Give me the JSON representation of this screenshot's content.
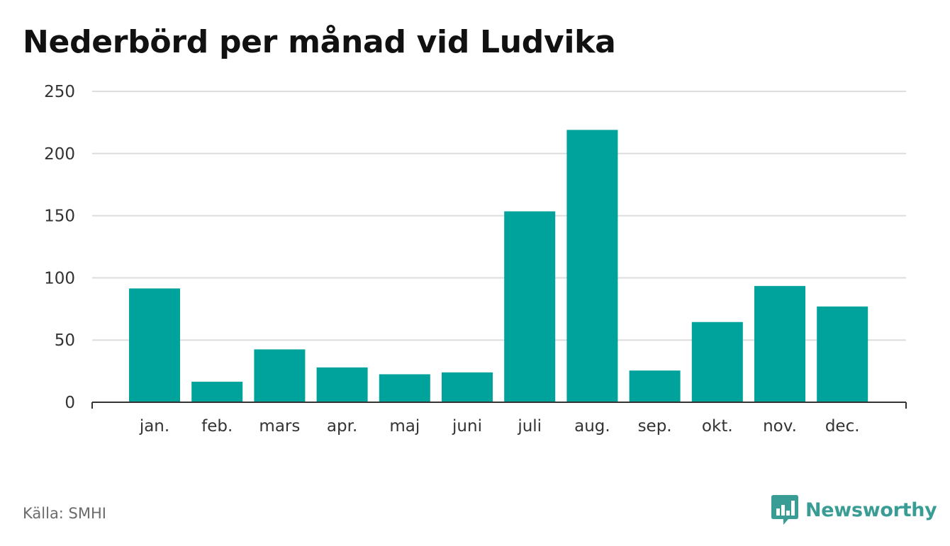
{
  "title": "Nederbörd per månad vid Ludvika",
  "source": "Källa: SMHI",
  "brand": {
    "name": "Newsworthy",
    "icon": "bar-chart-speech-bubble-icon",
    "color": "#3a9d95"
  },
  "colors": {
    "bar": "#00a39b",
    "grid": "#dddddd",
    "axis": "#333333",
    "text": "#333333"
  },
  "chart_data": {
    "type": "bar",
    "title": "Nederbörd per månad vid Ludvika",
    "xlabel": "",
    "ylabel": "",
    "categories": [
      "jan.",
      "feb.",
      "mars",
      "apr.",
      "maj",
      "juni",
      "juli",
      "aug.",
      "sep.",
      "okt.",
      "nov.",
      "dec."
    ],
    "values": [
      91.5,
      16.5,
      42.5,
      28,
      22.5,
      24,
      153.5,
      219,
      25.5,
      64.5,
      93.5,
      77
    ],
    "ylim": [
      0,
      250
    ],
    "yticks": [
      0,
      50,
      100,
      150,
      200,
      250
    ],
    "grid": true,
    "legend": "none"
  }
}
